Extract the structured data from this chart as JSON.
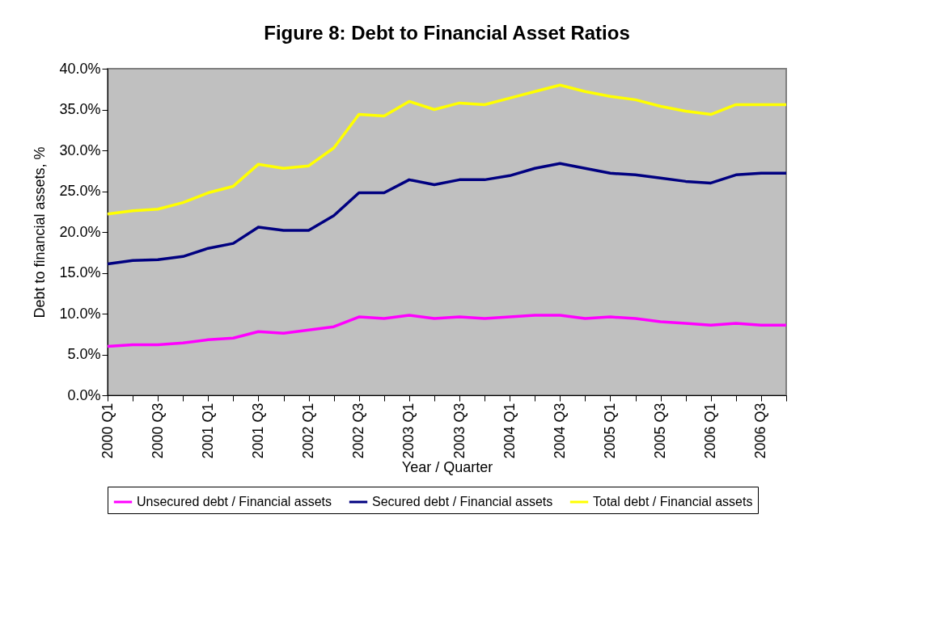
{
  "chart_data": {
    "type": "line",
    "title": "Figure 8: Debt to Financial Asset Ratios",
    "xlabel": "Year / Quarter",
    "ylabel": "Debt to financial assets, %",
    "categories": [
      "2000 Q1",
      null,
      "2000 Q3",
      null,
      "2001 Q1",
      null,
      "2001 Q3",
      null,
      "2002 Q1",
      null,
      "2002 Q3",
      null,
      "2003 Q1",
      null,
      "2003 Q3",
      null,
      "2004 Q1",
      null,
      "2004 Q3",
      null,
      "2005 Q1",
      null,
      "2005 Q3",
      null,
      "2006 Q1",
      null,
      "2006 Q3",
      null
    ],
    "series": [
      {
        "name": "Unsecured debt / Financial assets",
        "color": "#ff00ff",
        "values": [
          6.0,
          6.2,
          6.2,
          6.4,
          6.8,
          7.0,
          7.8,
          7.6,
          8.0,
          8.4,
          9.6,
          9.4,
          9.8,
          9.4,
          9.6,
          9.4,
          9.6,
          9.8,
          9.8,
          9.4,
          9.6,
          9.4,
          9.0,
          8.8,
          8.6,
          8.8,
          8.6,
          8.6
        ]
      },
      {
        "name": "Secured debt / Financial assets",
        "color": "#000080",
        "values": [
          16.1,
          16.5,
          16.6,
          17.0,
          18.0,
          18.6,
          20.6,
          20.2,
          20.2,
          22.0,
          24.8,
          24.8,
          26.4,
          25.8,
          26.4,
          26.4,
          26.9,
          27.8,
          28.4,
          27.8,
          27.2,
          27.0,
          26.6,
          26.2,
          26.0,
          27.0,
          27.2,
          27.2
        ]
      },
      {
        "name": "Total debt / Financial assets",
        "color": "#ffff00",
        "values": [
          22.2,
          22.6,
          22.8,
          23.6,
          24.8,
          25.6,
          28.3,
          27.8,
          28.1,
          30.3,
          34.4,
          34.2,
          36.0,
          35.0,
          35.8,
          35.6,
          36.4,
          37.2,
          38.0,
          37.2,
          36.6,
          36.2,
          35.4,
          34.8,
          34.4,
          35.6,
          35.6,
          35.6
        ]
      }
    ],
    "ylim": [
      0,
      40
    ],
    "yticks": [
      {
        "value": 0,
        "label": "0.0%"
      },
      {
        "value": 5,
        "label": "5.0%"
      },
      {
        "value": 10,
        "label": "10.0%"
      },
      {
        "value": 15,
        "label": "15.0%"
      },
      {
        "value": 20,
        "label": "20.0%"
      },
      {
        "value": 25,
        "label": "25.0%"
      },
      {
        "value": 30,
        "label": "30.0%"
      },
      {
        "value": 35,
        "label": "35.0%"
      },
      {
        "value": 40,
        "label": "40.0%"
      }
    ],
    "grid": false,
    "legend": "bottom"
  }
}
